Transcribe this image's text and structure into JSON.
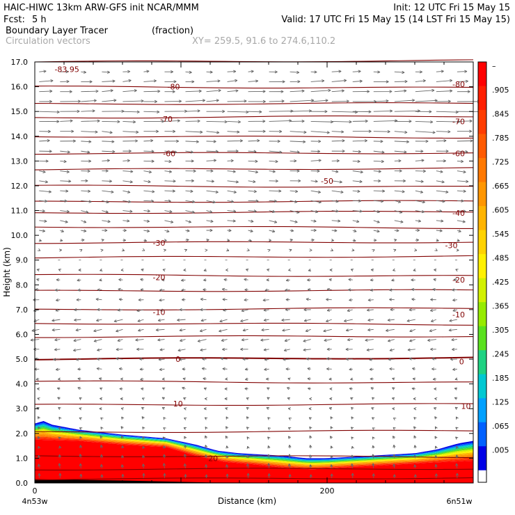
{
  "header": {
    "title": "HAIC-HIWC 13km ARW-GFS init   NCAR/MMM",
    "init": "Init: 12 UTC Fri 15 May 15",
    "fcst_label": "Fcst:",
    "fcst_value": "5 h",
    "valid": "Valid: 17 UTC Fri 15 May 15 (14 LST Fri 15 May 15)",
    "field_name": "Boundary Layer Tracer",
    "field_units": "(fraction)",
    "vector_label": "Circulation vectors",
    "xy_label": "XY= 259.5, 91.6 to 274.6,110.2"
  },
  "chart_data": {
    "type": "heatmap",
    "title": "Boundary Layer Tracer",
    "xlabel": "Distance (km)",
    "ylabel": "Height (km)",
    "ylim": [
      0,
      17
    ],
    "xlim": [
      0,
      300
    ],
    "y_ticks": [
      "0.0",
      "1.0",
      "2.0",
      "3.0",
      "4.0",
      "5.0",
      "6.0",
      "7.0",
      "8.0",
      "9.0",
      "10.0",
      "11.0",
      "12.0",
      "13.0",
      "14.0",
      "15.0",
      "16.0",
      "17.0"
    ],
    "x_ticks": [
      {
        "value": 0,
        "label": "0"
      },
      {
        "value": 200,
        "label": "200"
      }
    ],
    "x_end_labels": {
      "left": "4n53w",
      "right": "6n51w"
    },
    "colorbar": {
      "labels": [
        "–",
        ".905",
        ".845",
        ".785",
        ".725",
        ".665",
        ".605",
        ".545",
        ".485",
        ".425",
        ".365",
        ".305",
        ".245",
        ".185",
        ".125",
        ".065",
        ".005"
      ],
      "colors": [
        "#ff0000",
        "#ff1e00",
        "#ff3c00",
        "#ff5a00",
        "#ff7800",
        "#ff9600",
        "#ffb400",
        "#ffd200",
        "#fff000",
        "#d2f000",
        "#96eb00",
        "#5ae11e",
        "#1ed282",
        "#00c8d2",
        "#00a0ff",
        "#0060ff",
        "#0000e6"
      ],
      "bottom_color": "#ffffff"
    },
    "tracer_top_km": [
      [
        0,
        2.4
      ],
      [
        6,
        2.5
      ],
      [
        12,
        2.35
      ],
      [
        30,
        2.15
      ],
      [
        60,
        1.95
      ],
      [
        90,
        1.8
      ],
      [
        110,
        1.55
      ],
      [
        125,
        1.3
      ],
      [
        140,
        1.2
      ],
      [
        170,
        1.1
      ],
      [
        185,
        1.0
      ],
      [
        200,
        1.0
      ],
      [
        230,
        1.1
      ],
      [
        260,
        1.2
      ],
      [
        275,
        1.35
      ],
      [
        290,
        1.6
      ],
      [
        300,
        1.7
      ]
    ],
    "tracer_red_top_km": [
      [
        0,
        1.75
      ],
      [
        30,
        1.7
      ],
      [
        60,
        1.55
      ],
      [
        90,
        1.45
      ],
      [
        110,
        1.1
      ],
      [
        130,
        0.85
      ],
      [
        150,
        0.75
      ],
      [
        170,
        0.62
      ],
      [
        190,
        0.55
      ],
      [
        210,
        0.62
      ],
      [
        240,
        0.72
      ],
      [
        270,
        0.82
      ],
      [
        300,
        0.9
      ]
    ],
    "isotherms": [
      {
        "label": "-83.95",
        "x": 22,
        "y": 16.7
      },
      {
        "label": "-80",
        "x": 95,
        "y": 16.0
      },
      {
        "label": "-80",
        "x": 290,
        "y": 16.1
      },
      {
        "label": "-70",
        "x": 90,
        "y": 14.7
      },
      {
        "label": "-70",
        "x": 290,
        "y": 14.6
      },
      {
        "label": "-60",
        "x": 92,
        "y": 13.3
      },
      {
        "label": "-60",
        "x": 290,
        "y": 13.3
      },
      {
        "label": "-50",
        "x": 200,
        "y": 12.2
      },
      {
        "label": "-40",
        "x": 290,
        "y": 10.9
      },
      {
        "label": "-30",
        "x": 85,
        "y": 9.7
      },
      {
        "label": "-30",
        "x": 285,
        "y": 9.6
      },
      {
        "label": "-20",
        "x": 85,
        "y": 8.3
      },
      {
        "label": "-20",
        "x": 290,
        "y": 8.2
      },
      {
        "label": "-10",
        "x": 85,
        "y": 6.9
      },
      {
        "label": "-10",
        "x": 290,
        "y": 6.8
      },
      {
        "label": "0",
        "x": 98,
        "y": 5.0
      },
      {
        "label": "0",
        "x": 292,
        "y": 4.9
      },
      {
        "label": "10",
        "x": 98,
        "y": 3.2
      },
      {
        "label": "10",
        "x": 295,
        "y": 3.1
      },
      {
        "label": "20",
        "x": 122,
        "y": 1.0
      }
    ],
    "contour_heights_km": [
      17.0,
      16.0,
      15.3,
      14.75,
      14.0,
      13.3,
      12.65,
      12.0,
      11.35,
      10.9,
      10.35,
      9.7,
      9.1,
      8.4,
      7.75,
      7.0,
      6.45,
      5.9,
      5.0,
      4.1,
      3.15,
      2.05,
      1.1,
      0.55,
      0.15
    ],
    "wind_rows": [
      {
        "z": 16.6,
        "u": 0.5,
        "w": 0.0
      },
      {
        "z": 16.2,
        "u": 0.8,
        "w": 0.05
      },
      {
        "z": 15.8,
        "u": 1.0,
        "w": 0.05
      },
      {
        "z": 15.4,
        "u": 1.2,
        "w": 0.05
      },
      {
        "z": 15.0,
        "u": 1.3,
        "w": 0.0
      },
      {
        "z": 14.6,
        "u": 1.2,
        "w": 0.0
      },
      {
        "z": 14.2,
        "u": 1.0,
        "w": -0.05
      },
      {
        "z": 13.8,
        "u": 0.9,
        "w": 0.0
      },
      {
        "z": 13.4,
        "u": 0.75,
        "w": -0.05
      },
      {
        "z": 13.0,
        "u": 0.6,
        "w": 0.0
      },
      {
        "z": 12.6,
        "u": 0.6,
        "w": -0.05
      },
      {
        "z": 12.2,
        "u": 0.65,
        "w": -0.05
      },
      {
        "z": 11.8,
        "u": 0.7,
        "w": -0.08
      },
      {
        "z": 11.4,
        "u": 0.6,
        "w": -0.08
      },
      {
        "z": 11.0,
        "u": 0.55,
        "w": -0.1
      },
      {
        "z": 10.6,
        "u": 0.5,
        "w": -0.1
      },
      {
        "z": 10.2,
        "u": 0.35,
        "w": -0.05
      },
      {
        "z": 9.8,
        "u": 0.2,
        "w": 0.0
      },
      {
        "z": 9.4,
        "u": 0.1,
        "w": 0.0
      },
      {
        "z": 9.0,
        "u": 0.0,
        "w": 0.0
      },
      {
        "z": 8.6,
        "u": -0.15,
        "w": 0.0
      },
      {
        "z": 8.2,
        "u": -0.25,
        "w": 0.0
      },
      {
        "z": 7.8,
        "u": -0.3,
        "w": 0.0
      },
      {
        "z": 7.4,
        "u": -0.35,
        "w": 0.0
      },
      {
        "z": 7.0,
        "u": -0.4,
        "w": -0.05
      },
      {
        "z": 6.6,
        "u": -0.5,
        "w": -0.1
      },
      {
        "z": 6.2,
        "u": -0.5,
        "w": -0.1
      },
      {
        "z": 5.8,
        "u": -0.5,
        "w": -0.1
      },
      {
        "z": 5.4,
        "u": -0.45,
        "w": -0.05
      },
      {
        "z": 5.0,
        "u": -0.4,
        "w": 0.0
      },
      {
        "z": 4.6,
        "u": -0.3,
        "w": 0.0
      },
      {
        "z": 4.2,
        "u": -0.2,
        "w": 0.0
      },
      {
        "z": 3.8,
        "u": -0.2,
        "w": 0.05
      },
      {
        "z": 3.4,
        "u": -0.15,
        "w": 0.05
      },
      {
        "z": 3.0,
        "u": -0.15,
        "w": 0.05
      },
      {
        "z": 2.6,
        "u": -0.1,
        "w": 0.1
      },
      {
        "z": 2.2,
        "u": -0.1,
        "w": 0.1
      },
      {
        "z": 1.8,
        "u": -0.1,
        "w": 0.15
      },
      {
        "z": 1.4,
        "u": -0.05,
        "w": 0.2
      },
      {
        "z": 1.0,
        "u": -0.05,
        "w": 0.25
      },
      {
        "z": 0.6,
        "u": -0.05,
        "w": 0.3
      },
      {
        "z": 0.2,
        "u": 0.0,
        "w": 0.3
      }
    ]
  }
}
